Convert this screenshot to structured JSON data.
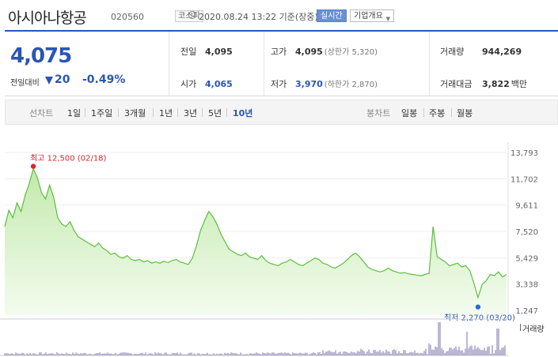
{
  "header": {
    "stock_name": "아시아나항공",
    "stock_code": "020560",
    "market": "코스피",
    "timestamp": "2020.08.24 13:22 기준(장중)",
    "realtime_label": "실시간",
    "company_label": "기업개요"
  },
  "price": {
    "current": "4,075",
    "change_label": "전일대비",
    "change_value": "20",
    "change_pct": "-0.49%",
    "direction": "down",
    "color": "#2a55b5"
  },
  "stats": {
    "prev_close": {
      "label": "전일",
      "value": "4,095"
    },
    "open": {
      "label": "시가",
      "value": "4,065"
    },
    "high": {
      "label": "고가",
      "value": "4,095",
      "sub": "(상한가 5,320)"
    },
    "low": {
      "label": "저가",
      "value": "3,970",
      "sub": "(하한가 2,870)"
    },
    "volume": {
      "label": "거래량",
      "value": "944,269"
    },
    "amount": {
      "label": "거래대금",
      "value": "3,822",
      "unit": "백만"
    }
  },
  "period_bar": {
    "line_title": "선차트",
    "line_periods": [
      "1일",
      "1주일",
      "3개월",
      "1년",
      "3년",
      "5년",
      "10년"
    ],
    "active": "10년",
    "candle_title": "봉차트",
    "candle_periods": [
      "일봉",
      "주봉",
      "월봉"
    ]
  },
  "chart_data": {
    "type": "area",
    "period": "10년",
    "y_ticks": [
      "13,793",
      "11,702",
      "9,611",
      "7,520",
      "5,429",
      "3,338",
      "1,247"
    ],
    "ylim": [
      1247,
      13793
    ],
    "high_annotation": "최고 12,500 (02/18)",
    "low_annotation": "최저 2,270 (03/20)",
    "high_value": 12500,
    "low_value": 2270,
    "volume_label": "거래량",
    "line_color": "#5cbf3c",
    "values": [
      7900,
      9200,
      8600,
      9800,
      9100,
      10400,
      11300,
      12500,
      11800,
      10600,
      10100,
      11200,
      10200,
      8600,
      8100,
      7900,
      8300,
      7600,
      7100,
      6900,
      6700,
      6500,
      6300,
      6600,
      6200,
      6000,
      5700,
      5800,
      5500,
      5400,
      5600,
      5300,
      5200,
      5300,
      5100,
      5200,
      5000,
      5100,
      5000,
      5150,
      5050,
      5200,
      5300,
      5100,
      5000,
      4900,
      5400,
      6400,
      7600,
      8400,
      9100,
      8700,
      8100,
      7300,
      6700,
      6100,
      5900,
      5700,
      5600,
      5800,
      5500,
      5400,
      5300,
      5600,
      5200,
      5000,
      4900,
      4800,
      5000,
      5100,
      5300,
      5100,
      4900,
      4800,
      5000,
      5200,
      5400,
      5300,
      5000,
      4900,
      4700,
      4600,
      4800,
      5000,
      5300,
      5600,
      5800,
      5500,
      5100,
      4700,
      4500,
      4400,
      4300,
      4400,
      4600,
      4400,
      4300,
      4200,
      4250,
      4150,
      4100,
      4050,
      4000,
      4100,
      4200,
      7900,
      5500,
      5300,
      5100,
      4800,
      4900,
      5000,
      4700,
      4800,
      4400,
      3400,
      2270,
      3300,
      3600,
      4100,
      4000,
      4300,
      3900,
      4100
    ]
  }
}
